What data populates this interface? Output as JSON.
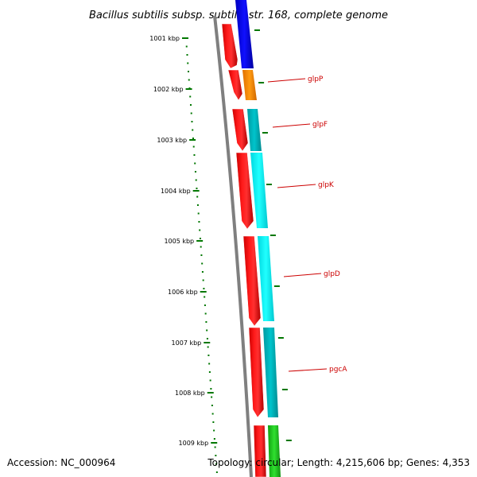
{
  "title": "Bacillus subtilis subsp. subtilis str. 168, complete genome",
  "footer": {
    "accession": "Accession: NC_000964",
    "topology": "Topology: circular; Length: 4,215,606 bp; Genes: 4,353"
  },
  "kbp_labels": [
    "1001 kbp",
    "1002 kbp",
    "1003 kbp",
    "1004 kbp",
    "1005 kbp",
    "1006 kbp",
    "1007 kbp",
    "1008 kbp",
    "1009 kbp"
  ],
  "gene_labels": [
    "glpP",
    "glpF",
    "glpK",
    "glpD",
    "pgcA"
  ],
  "colors": {
    "backbone": "#808080",
    "strand_feature": "#ff0000",
    "tick": "#007700",
    "label": "#cc0000",
    "blue": "#0000ee",
    "orange": "#ff8c00",
    "teal": "#00b0b8",
    "cyan": "#00f0f0",
    "green": "#22cc22"
  }
}
